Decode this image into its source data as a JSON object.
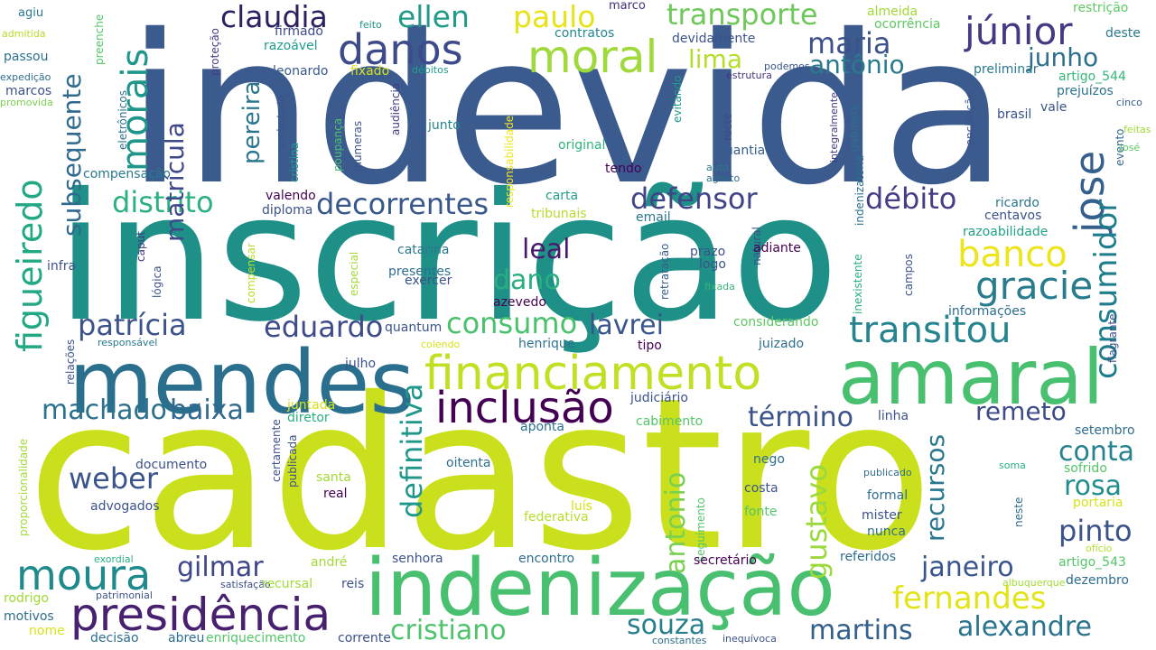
{
  "words": [
    {
      "id": "indevida",
      "text": "indevida",
      "color": "#3b5b8f"
    },
    {
      "id": "inscricao",
      "text": "inscrição",
      "color": "#1f9088"
    },
    {
      "id": "cadastro",
      "text": "cadastro",
      "color": "#cbe01d"
    },
    {
      "id": "mendes",
      "text": "mendes",
      "color": "#2b6f8e"
    },
    {
      "id": "amaral",
      "text": "amaral",
      "color": "#48c06f"
    },
    {
      "id": "indenizacao",
      "text": "indenização",
      "color": "#48c06f"
    },
    {
      "id": "presidencia",
      "text": "presidência",
      "color": "#47206f"
    },
    {
      "id": "moura",
      "text": "moura",
      "color": "#1f8a8c"
    },
    {
      "id": "financiamento",
      "text": "financiamento",
      "color": "#c2df23"
    },
    {
      "id": "inclusao",
      "text": "inclusão",
      "color": "#440154"
    },
    {
      "id": "danos",
      "text": "danos",
      "color": "#3d4b8a"
    },
    {
      "id": "moral",
      "text": "moral",
      "color": "#a0d93b"
    },
    {
      "id": "morais",
      "text": "morais",
      "color": "#1f968b"
    },
    {
      "id": "claudia",
      "text": "claudia",
      "color": "#2e1f5f"
    },
    {
      "id": "ellen",
      "text": "ellen",
      "color": "#1f9b88"
    },
    {
      "id": "paulo",
      "text": "paulo",
      "color": "#e6e418"
    },
    {
      "id": "transporte",
      "text": "transporte",
      "color": "#6fc95a"
    },
    {
      "id": "junior",
      "text": "júnior",
      "color": "#443a83"
    },
    {
      "id": "maria",
      "text": "maria",
      "color": "#3b528b"
    },
    {
      "id": "antonio1",
      "text": "antônio",
      "color": "#2a7a8e"
    },
    {
      "id": "junho",
      "text": "junho",
      "color": "#2e6f8e"
    },
    {
      "id": "lima",
      "text": "lima",
      "color": "#b5de2b"
    },
    {
      "id": "jose",
      "text": "jose",
      "color": "#355f8d"
    },
    {
      "id": "consumidor",
      "text": "consumidor",
      "color": "#1e7d8d"
    },
    {
      "id": "banco",
      "text": "banco",
      "color": "#ece51b"
    },
    {
      "id": "gracie",
      "text": "gracie",
      "color": "#287c8e"
    },
    {
      "id": "transitou",
      "text": "transitou",
      "color": "#25848e"
    },
    {
      "id": "debito",
      "text": "débito",
      "color": "#433e85"
    },
    {
      "id": "defensor",
      "text": "defensor",
      "color": "#414487"
    },
    {
      "id": "distrito",
      "text": "distrito",
      "color": "#2bb07f"
    },
    {
      "id": "decorrentes",
      "text": "decorrentes",
      "color": "#38588c"
    },
    {
      "id": "figueiredo",
      "text": "figueiredo",
      "color": "#22a884"
    },
    {
      "id": "subsequente",
      "text": "subsequente",
      "color": "#306a8e"
    },
    {
      "id": "matricula",
      "text": "matrícula",
      "color": "#3f4889"
    },
    {
      "id": "pereira",
      "text": "pereira",
      "color": "#2b758e"
    },
    {
      "id": "patricia",
      "text": "patrícia",
      "color": "#3b528b"
    },
    {
      "id": "eduardo",
      "text": "eduardo",
      "color": "#3e4c8a"
    },
    {
      "id": "consumo",
      "text": "consumo",
      "color": "#4ac16d"
    },
    {
      "id": "lavrei",
      "text": "lavrei",
      "color": "#39568c"
    },
    {
      "id": "dano",
      "text": "dano",
      "color": "#29af7f"
    },
    {
      "id": "leal",
      "text": "leal",
      "color": "#481b6d"
    },
    {
      "id": "definitiva",
      "text": "definitiva",
      "color": "#1f988b"
    },
    {
      "id": "machado",
      "text": "machado",
      "color": "#2c718e"
    },
    {
      "id": "baixa",
      "text": "baixa",
      "color": "#31688e"
    },
    {
      "id": "weber",
      "text": "weber",
      "color": "#3a548c"
    },
    {
      "id": "gilmar",
      "text": "gilmar",
      "color": "#3f4788"
    },
    {
      "id": "termino",
      "text": "término",
      "color": "#3b528b"
    },
    {
      "id": "recursos",
      "text": "recursos",
      "color": "#2a788e"
    },
    {
      "id": "gustavo",
      "text": "gustavo",
      "color": "#9bd93c"
    },
    {
      "id": "antonio2",
      "text": "antonio",
      "color": "#7ad151"
    },
    {
      "id": "remeto",
      "text": "remeto",
      "color": "#3e4a89"
    },
    {
      "id": "conta",
      "text": "conta",
      "color": "#26828e"
    },
    {
      "id": "rosa",
      "text": "rosa",
      "color": "#228d8d"
    },
    {
      "id": "pinto",
      "text": "pinto",
      "color": "#3b528b"
    },
    {
      "id": "janeiro",
      "text": "janeiro",
      "color": "#39558c"
    },
    {
      "id": "fernandes",
      "text": "fernandes",
      "color": "#e3e418"
    },
    {
      "id": "souza",
      "text": "souza",
      "color": "#277f8e"
    },
    {
      "id": "martins",
      "text": "martins",
      "color": "#34608d"
    },
    {
      "id": "alexandre",
      "text": "alexandre",
      "color": "#2b748e"
    },
    {
      "id": "cristiano",
      "text": "cristiano",
      "color": "#4ec36b"
    },
    {
      "id": "agiu",
      "text": "agiu",
      "color": "#2a788e"
    },
    {
      "id": "preenche",
      "text": "preenche",
      "color": "#54c568"
    },
    {
      "id": "protecao",
      "text": "proteção",
      "color": "#433e85"
    },
    {
      "id": "marco",
      "text": "marco",
      "color": "#472d7b"
    },
    {
      "id": "almeida",
      "text": "almeida",
      "color": "#a2da37"
    },
    {
      "id": "ocorrencia",
      "text": "ocorrência",
      "color": "#5ec962"
    },
    {
      "id": "restricao",
      "text": "restrição",
      "color": "#5ec962"
    },
    {
      "id": "deste",
      "text": "deste",
      "color": "#2a788e"
    },
    {
      "id": "admitida",
      "text": "admitida",
      "color": "#b5de2b"
    },
    {
      "id": "passou",
      "text": "passou",
      "color": "#2c718e"
    },
    {
      "id": "eletronicos",
      "text": "eletrônicos",
      "color": "#2c728e"
    },
    {
      "id": "firmado",
      "text": "firmado",
      "color": "#3e4a89"
    },
    {
      "id": "razoavel",
      "text": "razoável",
      "color": "#1e9c89"
    },
    {
      "id": "feito",
      "text": "feito",
      "color": "#20928c"
    },
    {
      "id": "contratos",
      "text": "contratos",
      "color": "#24868e"
    },
    {
      "id": "devidamente",
      "text": "devidamente",
      "color": "#3b528b"
    },
    {
      "id": "leonardo",
      "text": "leonardo",
      "color": "#38598c"
    },
    {
      "id": "fixado",
      "text": "fixado",
      "color": "#d8e219"
    },
    {
      "id": "debitos",
      "text": "débitos",
      "color": "#1f9e89"
    },
    {
      "id": "podemos",
      "text": "podemos",
      "color": "#3a538b"
    },
    {
      "id": "estrutura",
      "text": "estrutura",
      "color": "#46337e"
    },
    {
      "id": "preliminar",
      "text": "preliminar",
      "color": "#2a788e"
    },
    {
      "id": "artigo_544",
      "text": "artigo_544",
      "color": "#35b779"
    },
    {
      "id": "expedicao",
      "text": "expedição",
      "color": "#2e6e8e"
    },
    {
      "id": "promovida",
      "text": "promovida",
      "color": "#7ad151"
    },
    {
      "id": "marcos",
      "text": "marcos",
      "color": "#3b528b"
    },
    {
      "id": "sociedade",
      "text": "sociedade",
      "color": "#3b528b"
    },
    {
      "id": "responsabilidade",
      "text": "responsabilidade",
      "color": "#f1e51d"
    },
    {
      "id": "evitando",
      "text": "evitando",
      "color": "#1f998a"
    },
    {
      "id": "vale",
      "text": "vale",
      "color": "#3b528b"
    },
    {
      "id": "prejuizos",
      "text": "prejuízos",
      "color": "#2c738e"
    },
    {
      "id": "cinco",
      "text": "cinco",
      "color": "#355e8d"
    },
    {
      "id": "conciliacao",
      "text": "conciliação",
      "color": "#3a548c"
    },
    {
      "id": "integralmente",
      "text": "integralmente",
      "color": "#443983"
    },
    {
      "id": "poupanca",
      "text": "poupança",
      "color": "#4ac16d"
    },
    {
      "id": "inumeras",
      "text": "inúmeras",
      "color": "#3b528b"
    },
    {
      "id": "audiencia",
      "text": "audiência",
      "color": "#433e85"
    },
    {
      "id": "junto",
      "text": "junto",
      "color": "#24868e"
    },
    {
      "id": "original",
      "text": "original",
      "color": "#2fb47c"
    },
    {
      "id": "quantia",
      "text": "quantia",
      "color": "#355e8d"
    },
    {
      "id": "recte",
      "text": "recte",
      "color": "#3e4989"
    },
    {
      "id": "gabinete",
      "text": "gabinete",
      "color": "#2e6e8e"
    },
    {
      "id": "indenizatoria",
      "text": "indenizatória",
      "color": "#2c728e"
    },
    {
      "id": "brasil",
      "text": "brasil",
      "color": "#3b528b"
    },
    {
      "id": "feitas",
      "text": "feitas",
      "color": "#a2da37"
    },
    {
      "id": "evento",
      "text": "evento",
      "color": "#31688e"
    },
    {
      "id": "jose2",
      "text": "josé",
      "color": "#5ec962"
    },
    {
      "id": "cristina",
      "text": "cristina",
      "color": "#1f9a8a"
    },
    {
      "id": "compensacao",
      "text": "compensação",
      "color": "#2a788e"
    },
    {
      "id": "tendo",
      "text": "tendo",
      "color": "#440154"
    },
    {
      "id": "auto",
      "text": "auto",
      "color": "#2a788e"
    },
    {
      "id": "agosto",
      "text": "agosto",
      "color": "#2e6e8e"
    },
    {
      "id": "valendo",
      "text": "valendo",
      "color": "#440154"
    },
    {
      "id": "diploma",
      "text": "diploma",
      "color": "#3b528b"
    },
    {
      "id": "carta",
      "text": "carta",
      "color": "#1f9e89"
    },
    {
      "id": "tribunais",
      "text": "tribunais",
      "color": "#b5de2b"
    },
    {
      "id": "email",
      "text": "email",
      "color": "#2a788e"
    },
    {
      "id": "ricardo",
      "text": "ricardo",
      "color": "#2a788e"
    },
    {
      "id": "centavos",
      "text": "centavos",
      "color": "#3b528b"
    },
    {
      "id": "razoabilidade",
      "text": "razoabilidade",
      "color": "#20a386"
    },
    {
      "id": "caput",
      "text": "caput",
      "color": "#443983"
    },
    {
      "id": "logica",
      "text": "lógica",
      "color": "#3b528b"
    },
    {
      "id": "infra",
      "text": "infra",
      "color": "#3b528b"
    },
    {
      "id": "especial",
      "text": "especial",
      "color": "#a2da37"
    },
    {
      "id": "catarina",
      "text": "catarina",
      "color": "#2a788e"
    },
    {
      "id": "presentes",
      "text": "presentes",
      "color": "#2e6e8e"
    },
    {
      "id": "exercer",
      "text": "exercer",
      "color": "#3b528b"
    },
    {
      "id": "retratacao",
      "text": "retratação",
      "color": "#355e8d"
    },
    {
      "id": "prazo",
      "text": "prazo",
      "color": "#3b528b"
    },
    {
      "id": "logo",
      "text": "logo",
      "color": "#3b528b"
    },
    {
      "id": "natural",
      "text": "natural",
      "color": "#3b528b"
    },
    {
      "id": "adiante",
      "text": "adiante",
      "color": "#440154"
    },
    {
      "id": "campos",
      "text": "campos",
      "color": "#3b528b"
    },
    {
      "id": "inexistente",
      "text": "inexistente",
      "color": "#2ab07f"
    },
    {
      "id": "compensar",
      "text": "compensar",
      "color": "#b5de2b"
    },
    {
      "id": "azevedo",
      "text": "azevedo",
      "color": "#440154"
    },
    {
      "id": "fixada",
      "text": "fixada",
      "color": "#35b779"
    },
    {
      "id": "informacoes",
      "text": "informações",
      "color": "#2e6e8e"
    },
    {
      "id": "quantum",
      "text": "quantum",
      "color": "#3b528b"
    },
    {
      "id": "considerando",
      "text": "considerando",
      "color": "#5ec962"
    },
    {
      "id": "flagrante",
      "text": "flagrante",
      "color": "#3b528b"
    },
    {
      "id": "relacoes",
      "text": "relações",
      "color": "#3b528b"
    },
    {
      "id": "responsavel",
      "text": "responsável",
      "color": "#2a788e"
    },
    {
      "id": "colendo",
      "text": "colendo",
      "color": "#d8e219"
    },
    {
      "id": "henrique",
      "text": "henrique",
      "color": "#2c728e"
    },
    {
      "id": "tipo",
      "text": "tipo",
      "color": "#440154"
    },
    {
      "id": "juizado",
      "text": "juizado",
      "color": "#2e6e8e"
    },
    {
      "id": "proporcionalidade",
      "text": "proporcionalidade",
      "color": "#a2da37"
    },
    {
      "id": "julho",
      "text": "julho",
      "color": "#3b528b"
    },
    {
      "id": "judiciario",
      "text": "judiciário",
      "color": "#3b528b"
    },
    {
      "id": "juntada",
      "text": "juntada",
      "color": "#d8e219"
    },
    {
      "id": "aponta",
      "text": "aponta",
      "color": "#2e6e8e"
    },
    {
      "id": "diretor",
      "text": "diretor",
      "color": "#2ab07f"
    },
    {
      "id": "cabimento",
      "text": "cabimento",
      "color": "#54c568"
    },
    {
      "id": "linha",
      "text": "linha",
      "color": "#3b528b"
    },
    {
      "id": "setembro",
      "text": "setembro",
      "color": "#2e6e8e"
    },
    {
      "id": "documento",
      "text": "documento",
      "color": "#3b528b"
    },
    {
      "id": "certamente",
      "text": "certamente",
      "color": "#3b528b"
    },
    {
      "id": "publicada",
      "text": "publicada",
      "color": "#3b528b"
    },
    {
      "id": "oitenta",
      "text": "oitenta",
      "color": "#2e6e8e"
    },
    {
      "id": "nego",
      "text": "nego",
      "color": "#2e6e8e"
    },
    {
      "id": "publicado",
      "text": "publicado",
      "color": "#2e6e8e"
    },
    {
      "id": "soma",
      "text": "soma",
      "color": "#2ab07f"
    },
    {
      "id": "sofrido",
      "text": "sofrido",
      "color": "#54c568"
    },
    {
      "id": "santa",
      "text": "santa",
      "color": "#a2da37"
    },
    {
      "id": "real",
      "text": "real",
      "color": "#440154"
    },
    {
      "id": "costa",
      "text": "costa",
      "color": "#3b528b"
    },
    {
      "id": "formal",
      "text": "formal",
      "color": "#2e6e8e"
    },
    {
      "id": "neste",
      "text": "neste",
      "color": "#2e6e8e"
    },
    {
      "id": "portaria",
      "text": "portaria",
      "color": "#d8e219"
    },
    {
      "id": "advogados",
      "text": "advogados",
      "color": "#3b528b"
    },
    {
      "id": "luis",
      "text": "luís",
      "color": "#d8e219"
    },
    {
      "id": "federativa",
      "text": "federativa",
      "color": "#b5de2b"
    },
    {
      "id": "fonte",
      "text": "fonte",
      "color": "#54c568"
    },
    {
      "id": "mister",
      "text": "mister",
      "color": "#3b528b"
    },
    {
      "id": "seguimento",
      "text": "seguimento",
      "color": "#54c568"
    },
    {
      "id": "nunca",
      "text": "nunca",
      "color": "#2e6e8e"
    },
    {
      "id": "exordial",
      "text": "exordial",
      "color": "#2ab07f"
    },
    {
      "id": "oficio",
      "text": "ofício",
      "color": "#b5de2b"
    },
    {
      "id": "senhora",
      "text": "senhora",
      "color": "#3b528b"
    },
    {
      "id": "encontro",
      "text": "encontro",
      "color": "#2e6e8e"
    },
    {
      "id": "referidos",
      "text": "referidos",
      "color": "#2e6e8e"
    },
    {
      "id": "andre",
      "text": "andré",
      "color": "#a2da37"
    },
    {
      "id": "secretario",
      "text": "secretário",
      "color": "#440154"
    },
    {
      "id": "artigo_543",
      "text": "artigo_543",
      "color": "#54c568"
    },
    {
      "id": "patrimonial",
      "text": "patrimonial",
      "color": "#3b528b"
    },
    {
      "id": "satisfacao",
      "text": "satisfação",
      "color": "#3b528b"
    },
    {
      "id": "recursal",
      "text": "recursal",
      "color": "#a2da37"
    },
    {
      "id": "reis",
      "text": "reis",
      "color": "#3b528b"
    },
    {
      "id": "rodrigo",
      "text": "rodrigo",
      "color": "#a2da37"
    },
    {
      "id": "albuquerque",
      "text": "albuquerque",
      "color": "#a2da37"
    },
    {
      "id": "dezembro",
      "text": "dezembro",
      "color": "#2e6e8e"
    },
    {
      "id": "motivos",
      "text": "motivos",
      "color": "#2e6e8e"
    },
    {
      "id": "nome",
      "text": "nome",
      "color": "#d8e219"
    },
    {
      "id": "decisao",
      "text": "decisão",
      "color": "#2e6e8e"
    },
    {
      "id": "abreu",
      "text": "abreu",
      "color": "#2e6e8e"
    },
    {
      "id": "enriquecimento",
      "text": "enriquecimento",
      "color": "#54c568"
    },
    {
      "id": "corrente",
      "text": "corrente",
      "color": "#3b528b"
    },
    {
      "id": "constantes",
      "text": "constantes",
      "color": "#2e6e8e"
    },
    {
      "id": "inequivoca",
      "text": "inequívoca",
      "color": "#3b528b"
    }
  ]
}
